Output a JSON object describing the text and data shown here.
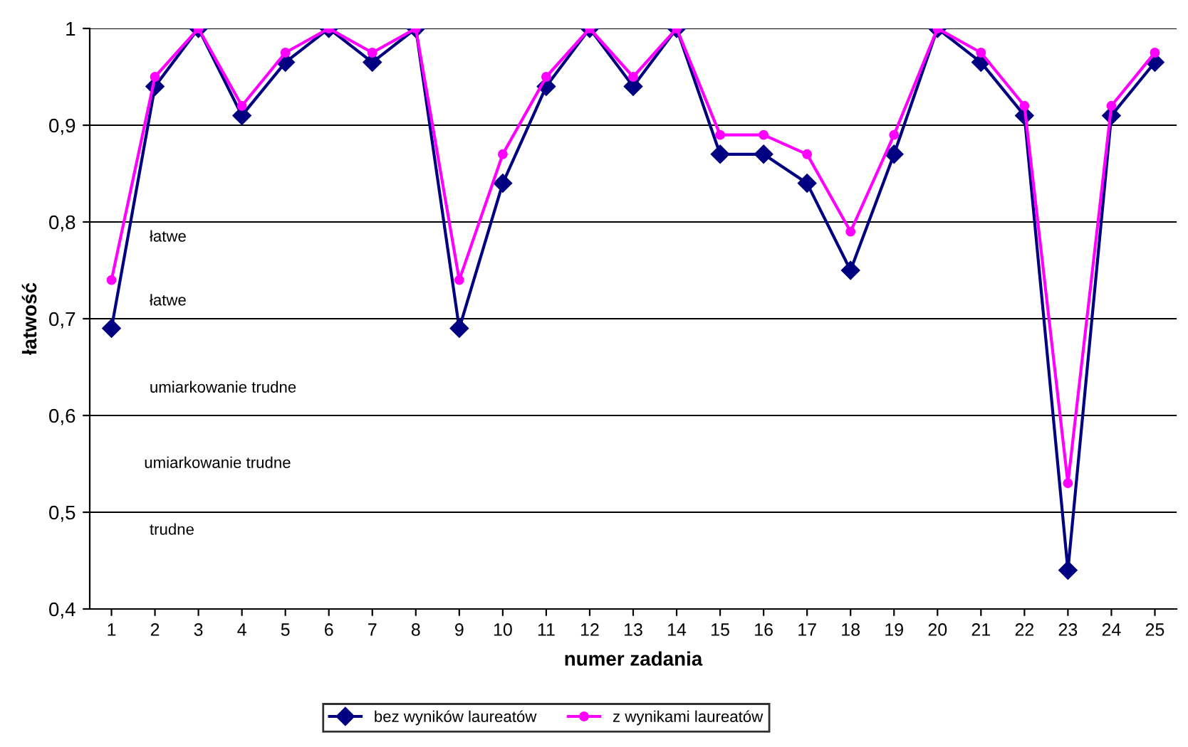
{
  "chart_data": {
    "type": "line",
    "xlabel": "numer zadania",
    "ylabel": "łatwość",
    "categories": [
      "1",
      "2",
      "3",
      "4",
      "5",
      "6",
      "7",
      "8",
      "9",
      "10",
      "11",
      "12",
      "13",
      "14",
      "15",
      "16",
      "17",
      "18",
      "19",
      "20",
      "21",
      "22",
      "23",
      "24",
      "25"
    ],
    "series": [
      {
        "name": "bez wyników laureatów",
        "color": "#000080",
        "marker": "diamond",
        "values": [
          0.69,
          0.94,
          1,
          0.91,
          0.965,
          1,
          0.965,
          1,
          0.69,
          0.84,
          0.94,
          1,
          0.94,
          1,
          0.87,
          0.87,
          0.84,
          0.75,
          0.87,
          1,
          0.965,
          0.91,
          0.44,
          0.91,
          0.965
        ]
      },
      {
        "name": "z wynikami laureatów",
        "color": "#ff00ff",
        "marker": "circle",
        "values": [
          0.74,
          0.95,
          1,
          0.92,
          0.975,
          1,
          0.975,
          1,
          0.74,
          0.87,
          0.95,
          1,
          0.95,
          1,
          0.89,
          0.89,
          0.87,
          0.79,
          0.89,
          1,
          0.975,
          0.92,
          0.53,
          0.92,
          0.975
        ]
      }
    ],
    "ylim": [
      0.4,
      1
    ],
    "yticks": [
      {
        "value": 0.4,
        "label": "0,4"
      },
      {
        "value": 0.5,
        "label": "0,5"
      },
      {
        "value": 0.6,
        "label": "0,6"
      },
      {
        "value": 0.7,
        "label": "0,7"
      },
      {
        "value": 0.8,
        "label": "0,8"
      },
      {
        "value": 0.9,
        "label": "0,9"
      },
      {
        "value": 1,
        "label": "1"
      }
    ],
    "grid": "y",
    "legend": "bottom",
    "line_style": "solid",
    "annotations": [
      "łatwe",
      "łatwe",
      "umiarkowanie trudne",
      "umiarkowanie trudne",
      "trudne"
    ]
  }
}
